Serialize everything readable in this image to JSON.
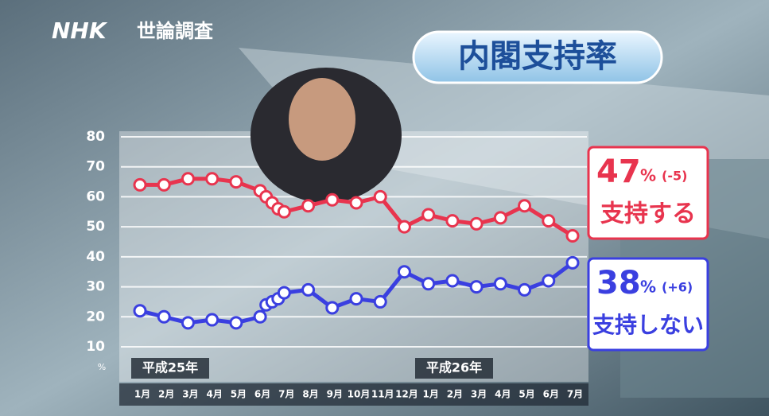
{
  "chart_data": {
    "type": "line",
    "brand": "NHK",
    "brand_suffix": "世論調査",
    "title": "内閣支持率",
    "categories": [
      "1月",
      "2月",
      "3月",
      "4月",
      "5月",
      "6月",
      null,
      null,
      null,
      "7月",
      "8月",
      "9月",
      "10月",
      "11月",
      "12月",
      "1月",
      "2月",
      "3月",
      "4月",
      "5月",
      "6月",
      "7月"
    ],
    "year_labels": [
      "平成25年",
      "平成26年"
    ],
    "y_unit": "%",
    "ylim": [
      10,
      80
    ],
    "yticks": [
      10,
      20,
      30,
      40,
      50,
      60,
      70,
      80
    ],
    "grid": true,
    "series": [
      {
        "name": "支持する",
        "color": "#e8344e",
        "values": [
          64,
          64,
          66,
          66,
          65,
          62,
          60,
          58,
          56,
          55,
          57,
          59,
          58,
          60,
          50,
          54,
          52,
          51,
          53,
          57,
          52,
          47
        ]
      },
      {
        "name": "支持しない",
        "color": "#3a3fe0",
        "values": [
          22,
          20,
          18,
          19,
          18,
          20,
          24,
          25,
          26,
          28,
          29,
          23,
          26,
          25,
          35,
          31,
          32,
          30,
          31,
          29,
          32,
          38
        ]
      }
    ],
    "annotations": [
      {
        "value": "47",
        "unit": "%",
        "change": "(-5)"
      },
      {
        "value": "38",
        "unit": "%",
        "change": "(+6)"
      }
    ]
  }
}
